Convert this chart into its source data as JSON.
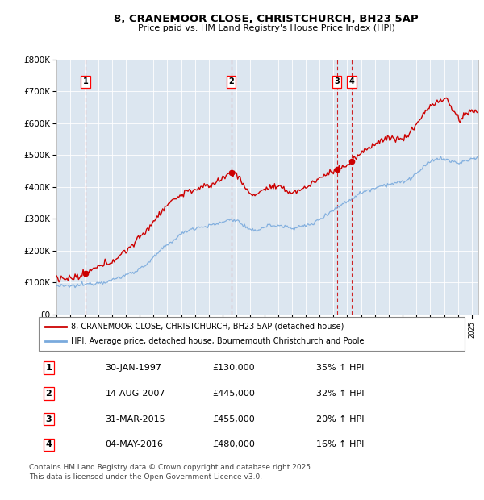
{
  "title": "8, CRANEMOOR CLOSE, CHRISTCHURCH, BH23 5AP",
  "subtitle": "Price paid vs. HM Land Registry's House Price Index (HPI)",
  "background_color": "#dce6f0",
  "plot_bg_color": "#dce6f0",
  "hpi_color": "#7aaadd",
  "price_color": "#cc0000",
  "ylim": [
    0,
    800000
  ],
  "yticks": [
    0,
    100000,
    200000,
    300000,
    400000,
    500000,
    600000,
    700000,
    800000
  ],
  "ytick_labels": [
    "£0",
    "£100K",
    "£200K",
    "£300K",
    "£400K",
    "£500K",
    "£600K",
    "£700K",
    "£800K"
  ],
  "xlim_start": 1995.0,
  "xlim_end": 2025.5,
  "transactions": [
    {
      "num": 1,
      "date": "30-JAN-1997",
      "year": 1997.08,
      "price": 130000,
      "pct": "35%",
      "dir": "↑"
    },
    {
      "num": 2,
      "date": "14-AUG-2007",
      "year": 2007.62,
      "price": 445000,
      "pct": "32%",
      "dir": "↑"
    },
    {
      "num": 3,
      "date": "31-MAR-2015",
      "year": 2015.25,
      "price": 455000,
      "pct": "20%",
      "dir": "↑"
    },
    {
      "num": 4,
      "date": "04-MAY-2016",
      "year": 2016.33,
      "price": 480000,
      "pct": "16%",
      "dir": "↑"
    }
  ],
  "legend_price_label": "8, CRANEMOOR CLOSE, CHRISTCHURCH, BH23 5AP (detached house)",
  "legend_hpi_label": "HPI: Average price, detached house, Bournemouth Christchurch and Poole",
  "footnote": "Contains HM Land Registry data © Crown copyright and database right 2025.\nThis data is licensed under the Open Government Licence v3.0.",
  "table_rows": [
    [
      "1",
      "30-JAN-1997",
      "£130,000",
      "35% ↑ HPI"
    ],
    [
      "2",
      "14-AUG-2007",
      "£445,000",
      "32% ↑ HPI"
    ],
    [
      "3",
      "31-MAR-2015",
      "£455,000",
      "20% ↑ HPI"
    ],
    [
      "4",
      "04-MAY-2016",
      "£480,000",
      "16% ↑ HPI"
    ]
  ]
}
